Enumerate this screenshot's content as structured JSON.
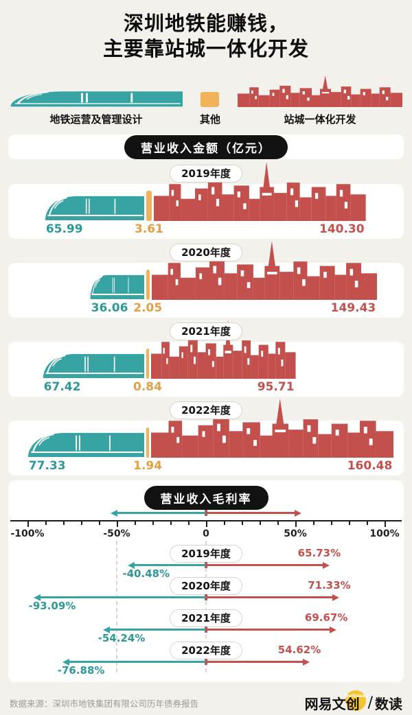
{
  "title": {
    "line1": "深圳地铁能赚钱，",
    "line2": "主要靠站城一体化开发"
  },
  "legend": {
    "metro_label": "地铁运营及管理设计",
    "other_label": "其他",
    "dev_label": "站城一体化开发"
  },
  "revenue_header": "营业收入金额（亿元）",
  "margin_header": "营业收入毛利率",
  "axis": {
    "tick_labels": [
      "-100%",
      "-50%",
      "0",
      "50%",
      "100%"
    ]
  },
  "colors": {
    "teal": "#38A3A3",
    "orange": "#F1B35A",
    "red": "#C4504E",
    "black_pill": "#121212",
    "background": "#F3F1EC",
    "logo_yellow": "#F5C32E"
  },
  "chart_data": [
    {
      "type": "bar",
      "title": "营业收入金额（亿元）",
      "orientation": "horizontal-stacked",
      "categories": [
        "2019年度",
        "2020年度",
        "2021年度",
        "2022年度"
      ],
      "series": [
        {
          "name": "地铁运营及管理设计",
          "color": "#38A3A3",
          "values": [
            65.99,
            36.06,
            67.42,
            77.33
          ]
        },
        {
          "name": "其他",
          "color": "#F1B35A",
          "values": [
            3.61,
            2.05,
            0.84,
            1.94
          ]
        },
        {
          "name": "站城一体化开发",
          "color": "#C4504E",
          "values": [
            140.3,
            149.43,
            95.71,
            160.48
          ]
        }
      ]
    },
    {
      "type": "bar",
      "title": "营业收入毛利率",
      "orientation": "horizontal-diverging",
      "categories": [
        "2019年度",
        "2020年度",
        "2021年度",
        "2022年度"
      ],
      "xlim": [
        -100,
        100
      ],
      "unit": "%",
      "series": [
        {
          "name": "地铁运营及管理设计",
          "color": "#38A3A3",
          "values": [
            -40.48,
            -93.09,
            -54.24,
            -76.88
          ]
        },
        {
          "name": "站城一体化开发",
          "color": "#C4504E",
          "values": [
            65.73,
            71.33,
            69.67,
            54.62
          ]
        }
      ]
    }
  ],
  "footer": {
    "source": "数据来源：深圳市地铁集团有限公司历年债券报告",
    "brand": "网易文创",
    "brand_badge": "NetEase",
    "slash": "/",
    "brand2": "数读"
  }
}
